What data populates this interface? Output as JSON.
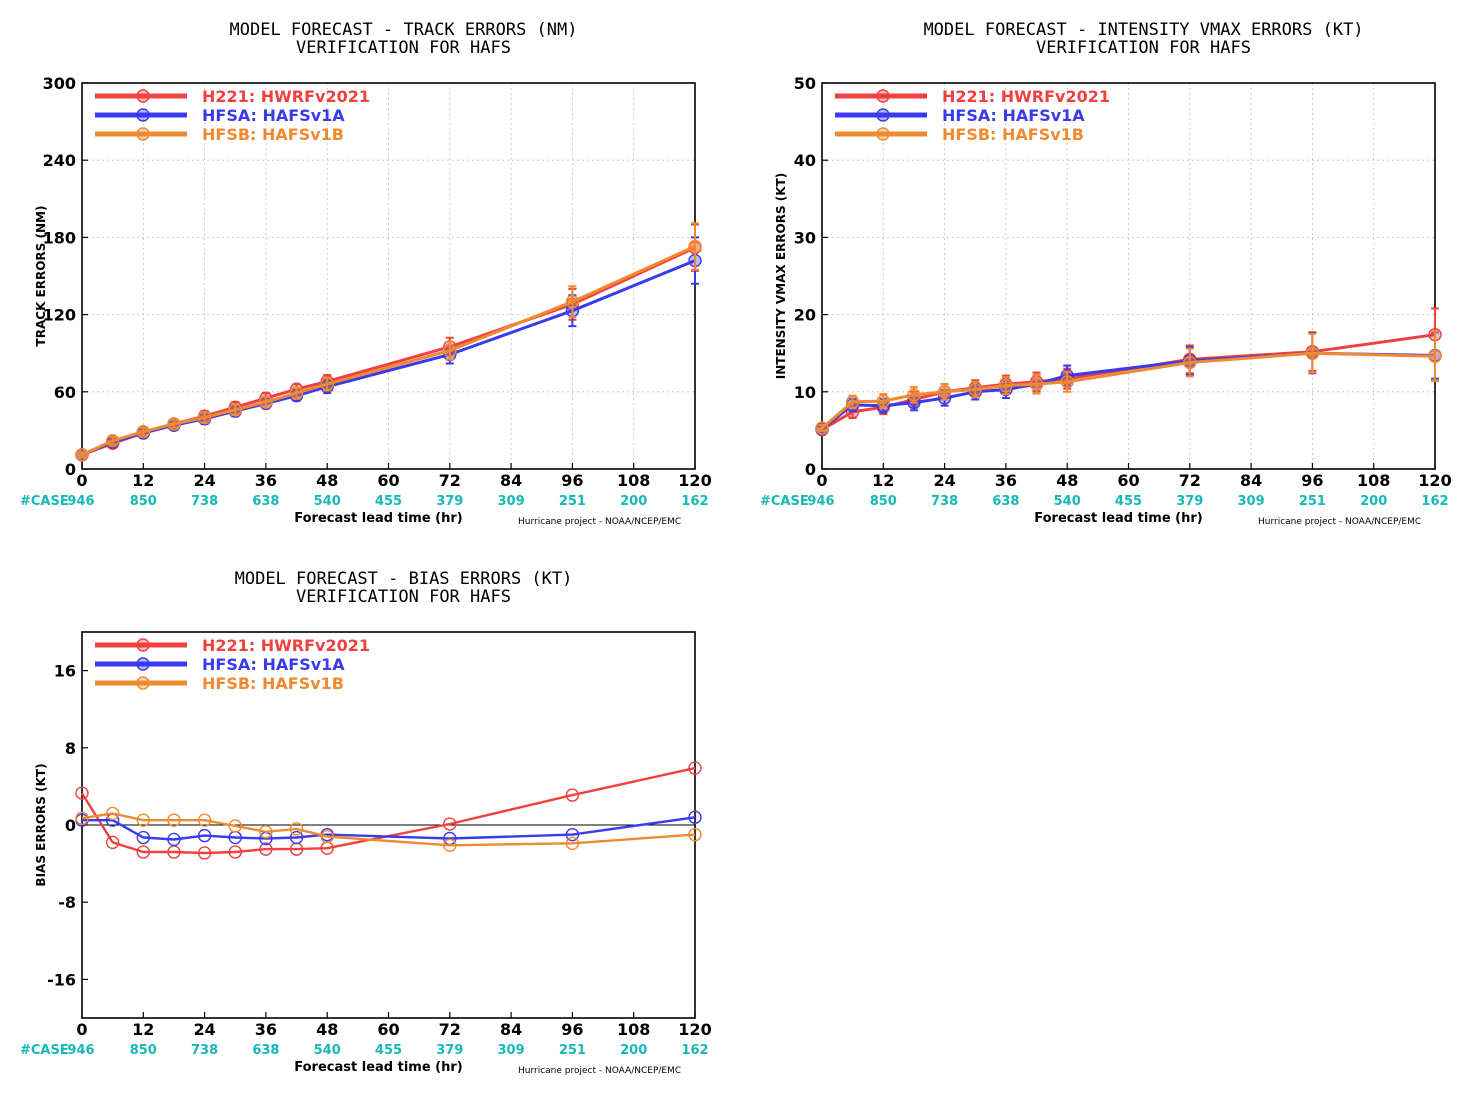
{
  "chart_data": [
    {
      "type": "line",
      "title": "MODEL FORECAST - TRACK ERRORS (NM)",
      "subtitle": "VERIFICATION FOR HAFS",
      "xlabel": "Forecast lead time (hr)",
      "ylabel": "TRACK ERRORS (NM)",
      "xlim": [
        0,
        120
      ],
      "ylim": [
        0,
        300
      ],
      "xticks": [
        0,
        12,
        24,
        36,
        48,
        60,
        72,
        84,
        96,
        108,
        120
      ],
      "yticks": [
        0,
        60,
        120,
        180,
        240,
        300
      ],
      "grid": true,
      "legend_position": "top-left",
      "case_label": "#CASE",
      "case_counts": [
        "946",
        "850",
        "738",
        "638",
        "540",
        "455",
        "379",
        "309",
        "251",
        "200",
        "162"
      ],
      "credit": "Hurricane project - NOAA/NCEP/EMC",
      "series": [
        {
          "name": "H221: HWRFv2021",
          "color": "#f04040",
          "x": [
            0,
            6,
            12,
            18,
            24,
            30,
            36,
            42,
            48,
            72,
            96,
            120
          ],
          "values": [
            11,
            20,
            28,
            35,
            41,
            48,
            55,
            62,
            68,
            95,
            128,
            172
          ],
          "error": [
            2,
            3,
            3,
            3,
            4,
            4,
            4,
            4,
            5,
            7,
            12,
            18
          ]
        },
        {
          "name": "HFSA: HAFSv1A",
          "color": "#3a3af0",
          "x": [
            0,
            6,
            12,
            18,
            24,
            30,
            36,
            42,
            48,
            72,
            96,
            120
          ],
          "values": [
            11,
            21,
            28,
            34,
            39,
            45,
            51,
            57,
            64,
            89,
            123,
            162
          ],
          "error": [
            2,
            3,
            3,
            3,
            4,
            4,
            4,
            4,
            5,
            7,
            12,
            18
          ]
        },
        {
          "name": "HFSB: HAFSv1B",
          "color": "#f08a30",
          "x": [
            0,
            6,
            12,
            18,
            24,
            30,
            36,
            42,
            48,
            72,
            96,
            120
          ],
          "values": [
            11,
            22,
            29,
            35,
            40,
            46,
            52,
            59,
            66,
            92,
            130,
            173
          ],
          "error": [
            2,
            3,
            3,
            3,
            4,
            4,
            4,
            4,
            5,
            7,
            12,
            18
          ]
        }
      ]
    },
    {
      "type": "line",
      "title": "MODEL FORECAST - INTENSITY VMAX ERRORS (KT)",
      "subtitle": "VERIFICATION FOR HAFS",
      "xlabel": "Forecast lead time (hr)",
      "ylabel": "INTENSITY VMAX ERRORS (KT)",
      "xlim": [
        0,
        120
      ],
      "ylim": [
        0,
        50
      ],
      "xticks": [
        0,
        12,
        24,
        36,
        48,
        60,
        72,
        84,
        96,
        108,
        120
      ],
      "yticks": [
        0,
        10,
        20,
        30,
        40,
        50
      ],
      "grid": true,
      "legend_position": "top-left",
      "case_label": "#CASE",
      "case_counts": [
        "946",
        "850",
        "738",
        "638",
        "540",
        "455",
        "379",
        "309",
        "251",
        "200",
        "162"
      ],
      "credit": "Hurricane project - NOAA/NCEP/EMC",
      "series": [
        {
          "name": "H221: HWRFv2021",
          "color": "#f04040",
          "x": [
            0,
            6,
            12,
            18,
            24,
            30,
            36,
            42,
            48,
            72,
            96,
            120
          ],
          "values": [
            5.1,
            7.4,
            8.0,
            9.0,
            10.0,
            10.5,
            11.0,
            11.3,
            11.7,
            14.2,
            15.2,
            17.4
          ],
          "error": [
            0.4,
            0.8,
            0.9,
            1.0,
            1.0,
            1.0,
            1.1,
            1.2,
            1.3,
            1.8,
            2.5,
            3.4
          ]
        },
        {
          "name": "HFSA: HAFSv1A",
          "color": "#3a3af0",
          "x": [
            0,
            6,
            12,
            18,
            24,
            30,
            36,
            42,
            48,
            72,
            96,
            120
          ],
          "values": [
            5.2,
            8.3,
            8.2,
            8.6,
            9.2,
            10.0,
            10.3,
            11.0,
            12.1,
            14.0,
            15.0,
            14.7
          ],
          "error": [
            0.4,
            0.8,
            0.9,
            1.0,
            1.0,
            1.0,
            1.1,
            1.2,
            1.3,
            1.8,
            2.6,
            3.0
          ]
        },
        {
          "name": "HFSB: HAFSv1B",
          "color": "#f08a30",
          "x": [
            0,
            6,
            12,
            18,
            24,
            30,
            36,
            42,
            48,
            72,
            96,
            120
          ],
          "values": [
            5.3,
            8.7,
            8.8,
            9.6,
            10.0,
            10.3,
            10.8,
            11.0,
            11.3,
            13.8,
            15.0,
            14.6
          ],
          "error": [
            0.4,
            0.8,
            0.9,
            1.0,
            1.0,
            1.0,
            1.1,
            1.2,
            1.3,
            1.8,
            2.5,
            3.2
          ]
        }
      ]
    },
    {
      "type": "line",
      "title": "MODEL FORECAST - BIAS ERRORS (KT)",
      "subtitle": "VERIFICATION FOR HAFS",
      "xlabel": "Forecast lead time (hr)",
      "ylabel": "BIAS ERRORS (KT)",
      "xlim": [
        0,
        120
      ],
      "ylim": [
        -20,
        20
      ],
      "xticks": [
        0,
        12,
        24,
        36,
        48,
        60,
        72,
        84,
        96,
        108,
        120
      ],
      "yticks": [
        -16,
        -8,
        0,
        8,
        16
      ],
      "zero_line": true,
      "grid": false,
      "legend_position": "top-left",
      "case_label": "#CASE",
      "case_counts": [
        "946",
        "850",
        "738",
        "638",
        "540",
        "455",
        "379",
        "309",
        "251",
        "200",
        "162"
      ],
      "credit": "Hurricane project - NOAA/NCEP/EMC",
      "series": [
        {
          "name": "H221: HWRFv2021",
          "color": "#f04040",
          "x": [
            0,
            6,
            12,
            18,
            24,
            30,
            36,
            42,
            48,
            72,
            96,
            120
          ],
          "values": [
            3.3,
            -1.8,
            -2.8,
            -2.8,
            -2.9,
            -2.8,
            -2.5,
            -2.5,
            -2.4,
            0.1,
            3.1,
            5.9
          ]
        },
        {
          "name": "HFSA: HAFSv1A",
          "color": "#3a3af0",
          "x": [
            0,
            6,
            12,
            18,
            24,
            30,
            36,
            42,
            48,
            72,
            96,
            120
          ],
          "values": [
            0.5,
            0.5,
            -1.3,
            -1.5,
            -1.1,
            -1.3,
            -1.4,
            -1.3,
            -1.0,
            -1.4,
            -1.0,
            0.8
          ]
        },
        {
          "name": "HFSB: HAFSv1B",
          "color": "#f08a30",
          "x": [
            0,
            6,
            12,
            18,
            24,
            30,
            36,
            42,
            48,
            72,
            96,
            120
          ],
          "values": [
            0.7,
            1.2,
            0.5,
            0.5,
            0.5,
            -0.1,
            -0.7,
            -0.4,
            -1.2,
            -2.1,
            -1.9,
            -1.0
          ]
        }
      ]
    }
  ]
}
